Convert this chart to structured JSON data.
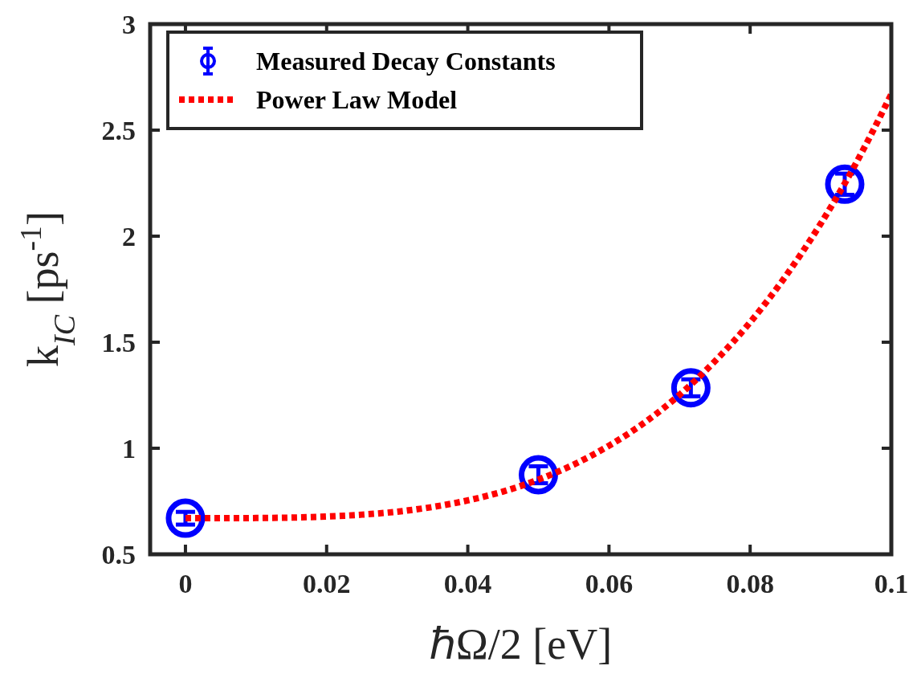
{
  "chart_data": {
    "type": "scatter",
    "xlabel": "ℏΩ/2 [eV]",
    "ylabel": "k$_{IC}$ [ps$^{-1}$]",
    "xlim": [
      -0.005,
      0.1
    ],
    "ylim": [
      0.5,
      3
    ],
    "xticks": [
      0,
      0.02,
      0.04,
      0.06,
      0.08,
      0.1
    ],
    "yticks": [
      0.5,
      1,
      1.5,
      2,
      2.5,
      3
    ],
    "legend": "top left",
    "series": [
      {
        "name": "Measured Decay Constants",
        "color": "#0000ff",
        "marker": "circle",
        "x": [
          0,
          0.05,
          0.0716,
          0.0934
        ],
        "values": [
          0.67,
          0.875,
          1.285,
          2.245
        ],
        "errors": [
          0.03,
          0.04,
          0.04,
          0.05
        ]
      },
      {
        "name": "Power Law Model",
        "type": "line",
        "color": "#ff0000",
        "line_style": "dotted",
        "marker": "none",
        "x": [
          0,
          0.005,
          0.01,
          0.015,
          0.02,
          0.025,
          0.03,
          0.035,
          0.04,
          0.045,
          0.05,
          0.055,
          0.06,
          0.065,
          0.07,
          0.075,
          0.08,
          0.085,
          0.09,
          0.095,
          0.1
        ],
        "values": [
          0.67,
          0.67,
          0.671,
          0.673,
          0.678,
          0.687,
          0.701,
          0.723,
          0.754,
          0.796,
          0.852,
          0.923,
          1.012,
          1.12,
          1.252,
          1.41,
          1.594,
          1.81,
          2.059,
          2.344,
          2.67
        ]
      }
    ]
  }
}
